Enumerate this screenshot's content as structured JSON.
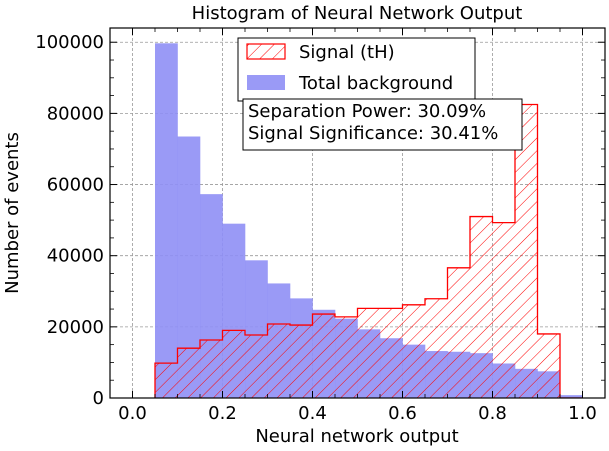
{
  "chart_data": {
    "type": "bar",
    "title": "Histogram of Neural Network Output",
    "xlabel": "Neural network output",
    "ylabel": "Number of events",
    "xlim": [
      -0.05,
      1.05
    ],
    "ylim": [
      0,
      104000
    ],
    "x_ticks": [
      "0.0",
      "0.2",
      "0.4",
      "0.6",
      "0.8",
      "1.0"
    ],
    "y_ticks": [
      "0",
      "20000",
      "40000",
      "60000",
      "80000",
      "100000"
    ],
    "grid": true,
    "bin_edges": [
      0.05,
      0.1,
      0.15,
      0.2,
      0.25,
      0.3,
      0.35,
      0.4,
      0.45,
      0.5,
      0.55,
      0.6,
      0.65,
      0.7,
      0.75,
      0.8,
      0.85,
      0.9,
      0.95,
      1.0
    ],
    "series": [
      {
        "name": "Signal (tH)",
        "style": "hatched-step",
        "color": "#ff0000",
        "values": [
          9800,
          14000,
          16300,
          19000,
          17700,
          20800,
          20500,
          23600,
          22800,
          25200,
          25200,
          26200,
          27900,
          36600,
          51000,
          49300,
          82500,
          18000,
          0
        ]
      },
      {
        "name": "Total background",
        "style": "filled",
        "color": "#8f8ff5",
        "values": [
          99700,
          73500,
          57300,
          49000,
          38700,
          32200,
          28000,
          24800,
          22300,
          19300,
          16800,
          15000,
          13200,
          13000,
          12600,
          9700,
          8200,
          7500,
          800
        ]
      }
    ],
    "legend": {
      "placement": "top-center",
      "entries": [
        "Signal (tH)",
        "Total background"
      ]
    },
    "annotation": {
      "lines": [
        "Separation Power: 30.09%",
        "Signal Significance: 30.41%"
      ]
    }
  }
}
